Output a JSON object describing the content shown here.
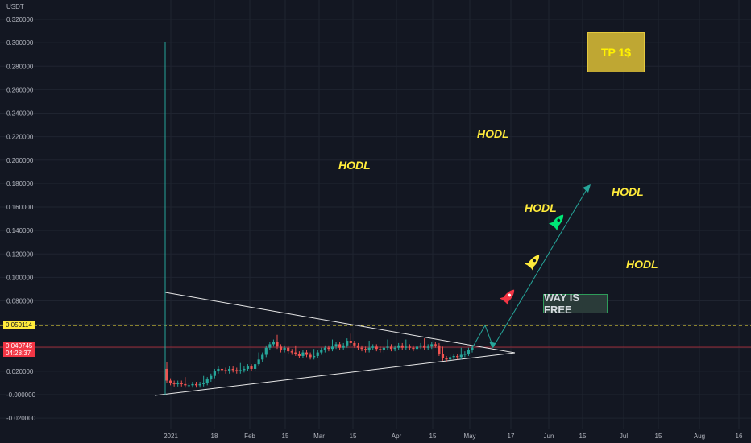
{
  "pair_unit": "USDT",
  "chart_data": {
    "type": "candlestick",
    "y_ticks": [
      "0.320000",
      "0.300000",
      "0.280000",
      "0.260000",
      "0.240000",
      "0.220000",
      "0.200000",
      "0.180000",
      "0.160000",
      "0.140000",
      "0.120000",
      "0.100000",
      "0.080000",
      "0.060000",
      "0.040000",
      "0.020000",
      "-0.000000",
      "-0.020000"
    ],
    "x_ticks": [
      "2021",
      "18",
      "Feb",
      "15",
      "Mar",
      "15",
      "Apr",
      "15",
      "May",
      "17",
      "Jun",
      "15",
      "Jul",
      "15",
      "Aug",
      "16"
    ],
    "ylim": [
      -0.028,
      0.33
    ],
    "listing_spike_high": 0.3,
    "price_line": {
      "value": "0.059114",
      "color": "#FFEB3B",
      "style": "dashed"
    },
    "last_price": {
      "value": "0.040745",
      "countdown": "04:28:37",
      "color": "#F23645"
    },
    "series": [
      {
        "name": "",
        "values": [
          0.012,
          0.01,
          0.009,
          0.01,
          0.009,
          0.008,
          0.008,
          0.009,
          0.008,
          0.009,
          0.01,
          0.013,
          0.016,
          0.02,
          0.022,
          0.021,
          0.02,
          0.022,
          0.021,
          0.02,
          0.021,
          0.022,
          0.024,
          0.022,
          0.026,
          0.03,
          0.034,
          0.04,
          0.043,
          0.045,
          0.041,
          0.038,
          0.04,
          0.037,
          0.036,
          0.035,
          0.033,
          0.036,
          0.034,
          0.032,
          0.033,
          0.036,
          0.038,
          0.04,
          0.039,
          0.041,
          0.043,
          0.04,
          0.042,
          0.046,
          0.044,
          0.042,
          0.04,
          0.039,
          0.038,
          0.04,
          0.041,
          0.039,
          0.038,
          0.04,
          0.041,
          0.039,
          0.04,
          0.042,
          0.04,
          0.041,
          0.04,
          0.039,
          0.041,
          0.042,
          0.04,
          0.041,
          0.043,
          0.042,
          0.035,
          0.031,
          0.03,
          0.032,
          0.033,
          0.032,
          0.034,
          0.035,
          0.038,
          0.04
        ]
      }
    ],
    "annotations": {
      "hodl_label": "HODL",
      "tp_label": "TP 1$",
      "way_label": "WAY IS FREE"
    }
  }
}
